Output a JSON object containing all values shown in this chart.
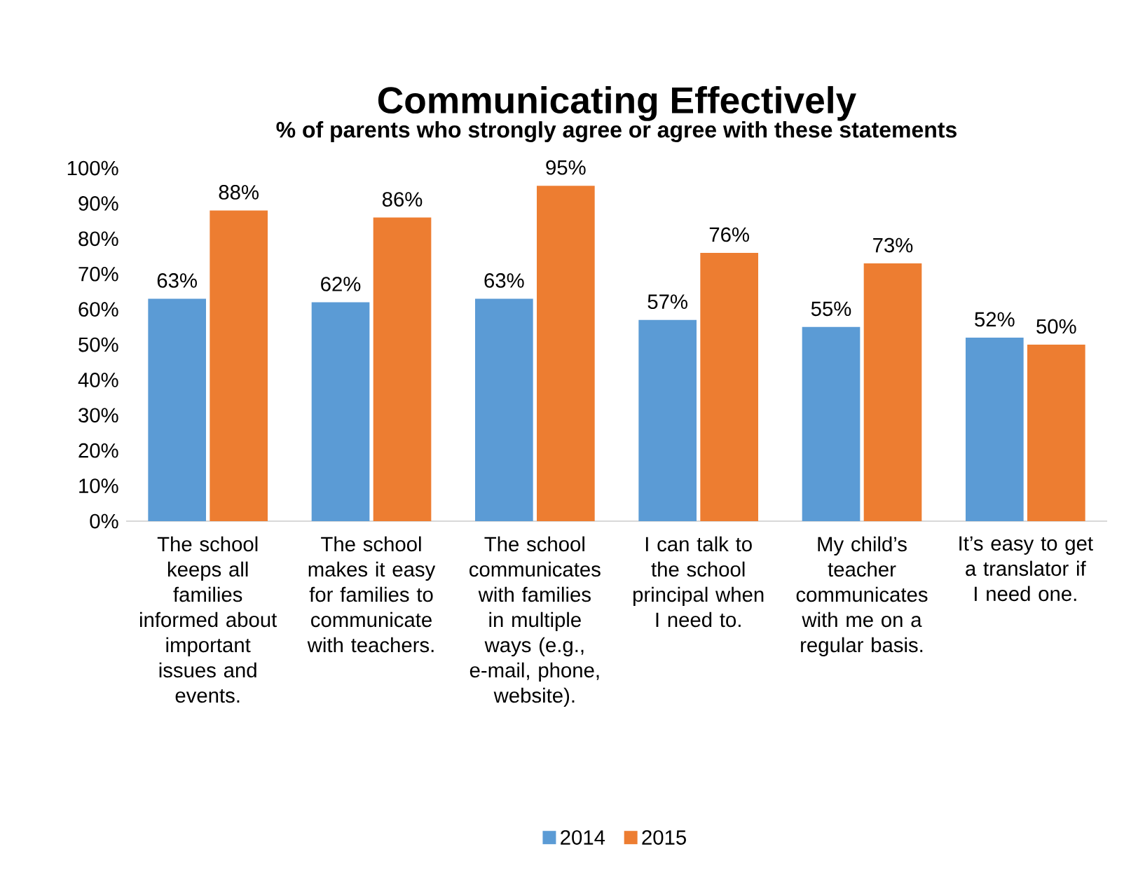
{
  "chart_data": {
    "type": "bar",
    "title": "Communicating Effectively",
    "subtitle": "% of parents who strongly agree or agree with these statements",
    "categories": [
      "The school keeps all families informed about important issues and events.",
      "The school makes it easy for families to communicate with teachers.",
      "The school communicates with families in multiple ways (e.g., e-mail, phone, website).",
      "I can talk to the school principal when I need to.",
      "My child’s teacher communicates with me on a regular basis.",
      "It’s easy to get a translator if I need one."
    ],
    "series": [
      {
        "name": "2014",
        "color": "#5b9bd5",
        "values": [
          63,
          62,
          63,
          57,
          55,
          52
        ],
        "value_labels": [
          "63%",
          "62%",
          "63%",
          "57%",
          "55%",
          "52%"
        ]
      },
      {
        "name": "2015",
        "color": "#ed7d31",
        "values": [
          88,
          86,
          95,
          76,
          73,
          50
        ],
        "value_labels": [
          "88%",
          "86%",
          "95%",
          "76%",
          "73%",
          "50%"
        ]
      }
    ],
    "ylim": [
      0,
      100
    ],
    "yticks": [
      {
        "value": 0,
        "label": "0%"
      },
      {
        "value": 10,
        "label": "10%"
      },
      {
        "value": 20,
        "label": "20%"
      },
      {
        "value": 30,
        "label": "30%"
      },
      {
        "value": 40,
        "label": "40%"
      },
      {
        "value": 50,
        "label": "50%"
      },
      {
        "value": 60,
        "label": "60%"
      },
      {
        "value": 70,
        "label": "70%"
      },
      {
        "value": 80,
        "label": "80%"
      },
      {
        "value": 90,
        "label": "90%"
      },
      {
        "value": 100,
        "label": "100%"
      }
    ],
    "legend": "bottom"
  }
}
